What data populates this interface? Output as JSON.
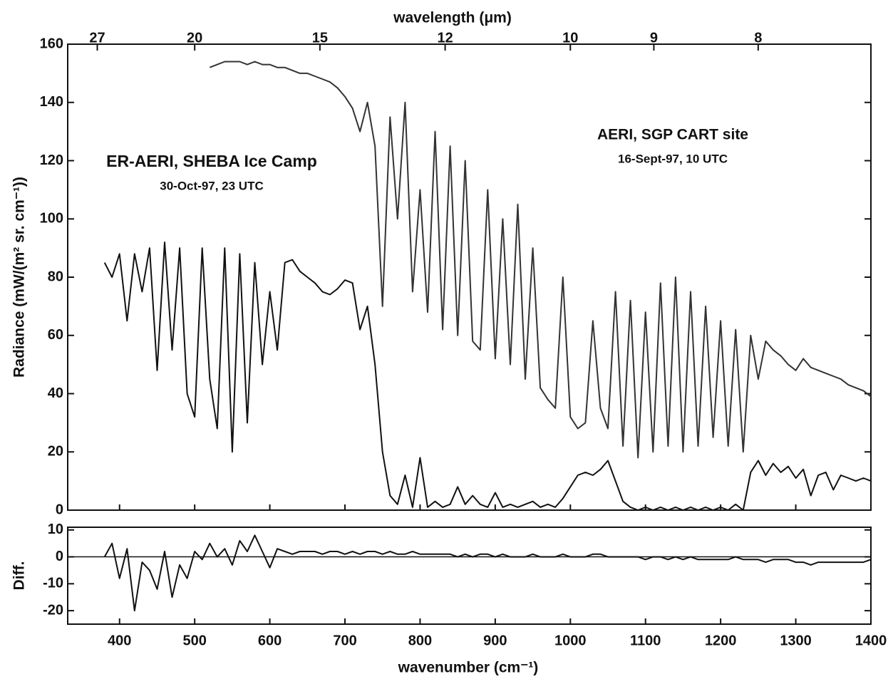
{
  "chart_data": [
    {
      "type": "line",
      "title": "wavelength (μm)",
      "ylabel": "Radiance (mW/(m² sr. cm⁻¹))",
      "annotations": [
        "ER-AERI, SHEBA Ice Camp",
        "30-Oct-97, 23 UTC",
        "AERI, SGP CART site",
        "16-Sept-97, 10 UTC"
      ],
      "xlim": [
        331,
        1400
      ],
      "ylim": [
        0,
        160
      ],
      "yticks": [
        0,
        20,
        40,
        60,
        80,
        100,
        120,
        140,
        160
      ],
      "x2ticks": [
        {
          "value": 370.37,
          "label": "27"
        },
        {
          "value": 500,
          "label": "20"
        },
        {
          "value": 666.67,
          "label": "15"
        },
        {
          "value": 833.33,
          "label": "12"
        },
        {
          "value": 1000,
          "label": "10"
        },
        {
          "value": 1111.11,
          "label": "9"
        },
        {
          "value": 1250,
          "label": "8"
        }
      ],
      "x": [
        380,
        390,
        400,
        410,
        420,
        430,
        440,
        450,
        460,
        470,
        480,
        490,
        500,
        510,
        520,
        530,
        540,
        550,
        560,
        570,
        580,
        590,
        600,
        610,
        620,
        630,
        640,
        650,
        660,
        670,
        680,
        690,
        700,
        710,
        720,
        730,
        740,
        750,
        760,
        770,
        780,
        790,
        800,
        810,
        820,
        830,
        840,
        850,
        860,
        870,
        880,
        890,
        900,
        910,
        920,
        930,
        940,
        950,
        960,
        970,
        980,
        990,
        1000,
        1010,
        1020,
        1030,
        1040,
        1050,
        1060,
        1070,
        1080,
        1090,
        1100,
        1110,
        1120,
        1130,
        1140,
        1150,
        1160,
        1170,
        1180,
        1190,
        1200,
        1210,
        1220,
        1230,
        1240,
        1250,
        1260,
        1270,
        1280,
        1290,
        1300,
        1310,
        1320,
        1330,
        1340,
        1350,
        1360,
        1370,
        1380,
        1390,
        1400
      ],
      "series": [
        {
          "color": "#111111",
          "values": [
            85,
            80,
            88,
            65,
            88,
            75,
            90,
            48,
            92,
            55,
            90,
            40,
            32,
            90,
            45,
            28,
            90,
            20,
            88,
            30,
            85,
            50,
            75,
            55,
            85,
            86,
            82,
            80,
            78,
            75,
            74,
            76,
            79,
            78,
            62,
            70,
            50,
            20,
            5,
            2,
            12,
            1,
            18,
            1,
            3,
            1,
            2,
            8,
            2,
            5,
            2,
            1,
            6,
            1,
            2,
            1,
            2,
            3,
            1,
            2,
            1,
            4,
            8,
            12,
            13,
            12,
            14,
            17,
            10,
            3,
            1,
            0,
            1,
            0,
            1,
            0,
            1,
            0,
            1,
            0,
            1,
            0,
            1,
            0,
            2,
            0,
            13,
            17,
            12,
            16,
            13,
            15,
            11,
            14,
            5,
            12,
            13,
            7,
            12,
            11,
            10,
            11,
            10
          ]
        },
        {
          "color": "#333333",
          "values": [
            null,
            null,
            null,
            null,
            null,
            null,
            null,
            null,
            null,
            null,
            null,
            null,
            null,
            null,
            152,
            153,
            154,
            154,
            154,
            153,
            154,
            153,
            153,
            152,
            152,
            151,
            150,
            150,
            149,
            148,
            147,
            145,
            142,
            138,
            130,
            140,
            125,
            70,
            135,
            100,
            140,
            75,
            110,
            68,
            130,
            62,
            125,
            60,
            120,
            58,
            55,
            110,
            52,
            100,
            50,
            105,
            45,
            90,
            42,
            38,
            35,
            80,
            32,
            28,
            30,
            65,
            35,
            28,
            75,
            22,
            72,
            18,
            68,
            20,
            78,
            22,
            80,
            20,
            75,
            22,
            70,
            25,
            65,
            22,
            62,
            20,
            60,
            45,
            58,
            55,
            53,
            50,
            48,
            52,
            49,
            48,
            47,
            46,
            45,
            43,
            42,
            41,
            39
          ]
        }
      ]
    },
    {
      "type": "line",
      "ylabel": "Diff.",
      "xlabel": "wavenumber (cm⁻¹)",
      "xlim": [
        331,
        1400
      ],
      "ylim": [
        -25,
        11
      ],
      "yticks": [
        -20,
        -10,
        0,
        10
      ],
      "xticks": [
        400,
        500,
        600,
        700,
        800,
        900,
        1000,
        1100,
        1200,
        1300,
        1400
      ],
      "x": [
        380,
        390,
        400,
        410,
        420,
        430,
        440,
        450,
        460,
        470,
        480,
        490,
        500,
        510,
        520,
        530,
        540,
        550,
        560,
        570,
        580,
        590,
        600,
        610,
        620,
        630,
        640,
        650,
        660,
        670,
        680,
        690,
        700,
        710,
        720,
        730,
        740,
        750,
        760,
        770,
        780,
        790,
        800,
        810,
        820,
        830,
        840,
        850,
        860,
        870,
        880,
        890,
        900,
        910,
        920,
        930,
        940,
        950,
        960,
        970,
        980,
        990,
        1000,
        1010,
        1020,
        1030,
        1040,
        1050,
        1060,
        1070,
        1080,
        1090,
        1100,
        1110,
        1120,
        1130,
        1140,
        1150,
        1160,
        1170,
        1180,
        1190,
        1200,
        1210,
        1220,
        1230,
        1240,
        1250,
        1260,
        1270,
        1280,
        1290,
        1300,
        1310,
        1320,
        1330,
        1340,
        1350,
        1360,
        1370,
        1380,
        1390,
        1400
      ],
      "series": [
        {
          "color": "#111111",
          "values": [
            0,
            5,
            -8,
            3,
            -20,
            -2,
            -5,
            -12,
            2,
            -15,
            -3,
            -8,
            2,
            -1,
            5,
            0,
            3,
            -3,
            6,
            2,
            8,
            2,
            -4,
            3,
            2,
            1,
            2,
            2,
            2,
            1,
            2,
            2,
            1,
            2,
            1,
            2,
            2,
            1,
            2,
            1,
            1,
            2,
            1,
            1,
            1,
            1,
            1,
            0,
            1,
            0,
            1,
            1,
            0,
            1,
            0,
            0,
            0,
            1,
            0,
            0,
            0,
            1,
            0,
            0,
            0,
            1,
            1,
            0,
            0,
            0,
            0,
            0,
            -1,
            0,
            0,
            -1,
            0,
            -1,
            0,
            -1,
            -1,
            -1,
            -1,
            -1,
            0,
            -1,
            -1,
            -1,
            -2,
            -1,
            -1,
            -1,
            -2,
            -2,
            -3,
            -2,
            -2,
            -2,
            -2,
            -2,
            -2,
            -2,
            -1
          ]
        }
      ]
    }
  ]
}
